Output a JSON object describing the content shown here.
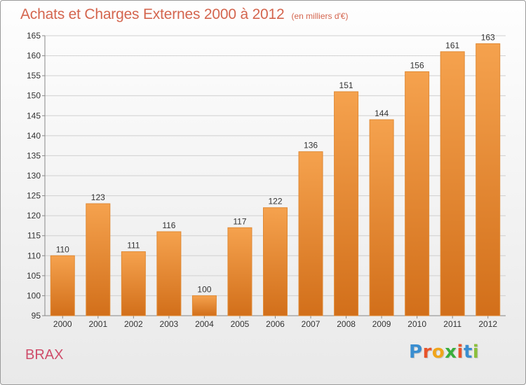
{
  "header": {
    "title": "Achats et Charges Externes 2000 à 2012",
    "subtitle": "(en milliers d'€)"
  },
  "footer": {
    "commune": "BRAX",
    "logo_text": "Proxiti"
  },
  "colors": {
    "bar_light": "#f5a24e",
    "bar_dark": "#d26f1a",
    "title": "#d4654e",
    "commune": "#cf4d6a",
    "grid": "#d0d0d0"
  },
  "logo_letters": [
    {
      "ch": "P",
      "color": "#3a8ed0"
    },
    {
      "ch": "r",
      "color": "#e8542b"
    },
    {
      "ch": "o",
      "color": "#f0a51b"
    },
    {
      "ch": "x",
      "color": "#3aae3c"
    },
    {
      "ch": "i",
      "color": "#e8542b"
    },
    {
      "ch": "t",
      "color": "#3a8ed0"
    },
    {
      "ch": "i",
      "color": "#8bbf3b"
    }
  ],
  "chart_data": {
    "type": "bar",
    "title": "Achats et Charges Externes 2000 à 2012",
    "subtitle": "(en milliers d'€)",
    "categories": [
      "2000",
      "2001",
      "2002",
      "2003",
      "2004",
      "2005",
      "2006",
      "2007",
      "2008",
      "2009",
      "2010",
      "2011",
      "2012"
    ],
    "values": [
      110,
      123,
      111,
      116,
      100,
      117,
      122,
      136,
      151,
      144,
      156,
      161,
      163
    ],
    "ylim": [
      95,
      165
    ],
    "yticks": [
      95,
      100,
      105,
      110,
      115,
      120,
      125,
      130,
      135,
      140,
      145,
      150,
      155,
      160,
      165
    ],
    "grid": true,
    "xlabel": "",
    "ylabel": ""
  }
}
